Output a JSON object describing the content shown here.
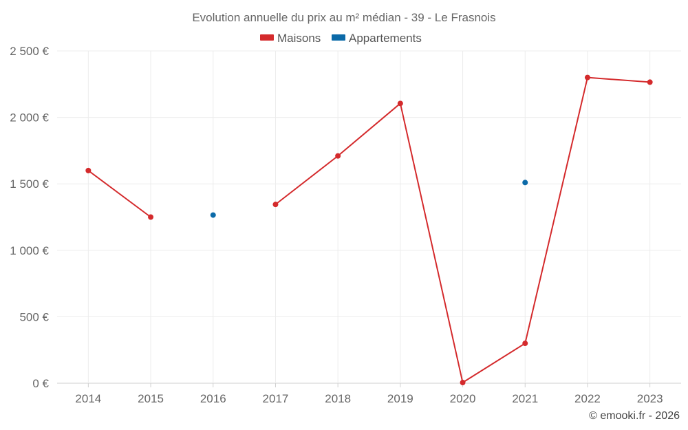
{
  "chart_data": {
    "type": "line",
    "title": "Evolution annuelle du prix au m² médian - 39 - Le Frasnois",
    "categories": [
      "2014",
      "2015",
      "2016",
      "2017",
      "2018",
      "2019",
      "2020",
      "2021",
      "2022",
      "2023"
    ],
    "series": [
      {
        "name": "Maisons",
        "color": "#d42a2c",
        "values": [
          1600,
          1250,
          null,
          1345,
          1710,
          2105,
          5,
          300,
          2300,
          2265
        ]
      },
      {
        "name": "Appartements",
        "color": "#0b6aa8",
        "values": [
          null,
          null,
          1265,
          null,
          null,
          null,
          null,
          1510,
          null,
          null
        ]
      }
    ],
    "ylim": [
      0,
      2500
    ],
    "yticks": [
      0,
      500,
      1000,
      1500,
      2000,
      2500
    ],
    "ytick_labels": [
      "0 €",
      "500 €",
      "1 000 €",
      "1 500 €",
      "2 000 €",
      "2 500 €"
    ],
    "grid": true,
    "legend_position": "top-center",
    "xlabel": "",
    "ylabel": ""
  },
  "credit": "© emooki.fr - 2026"
}
